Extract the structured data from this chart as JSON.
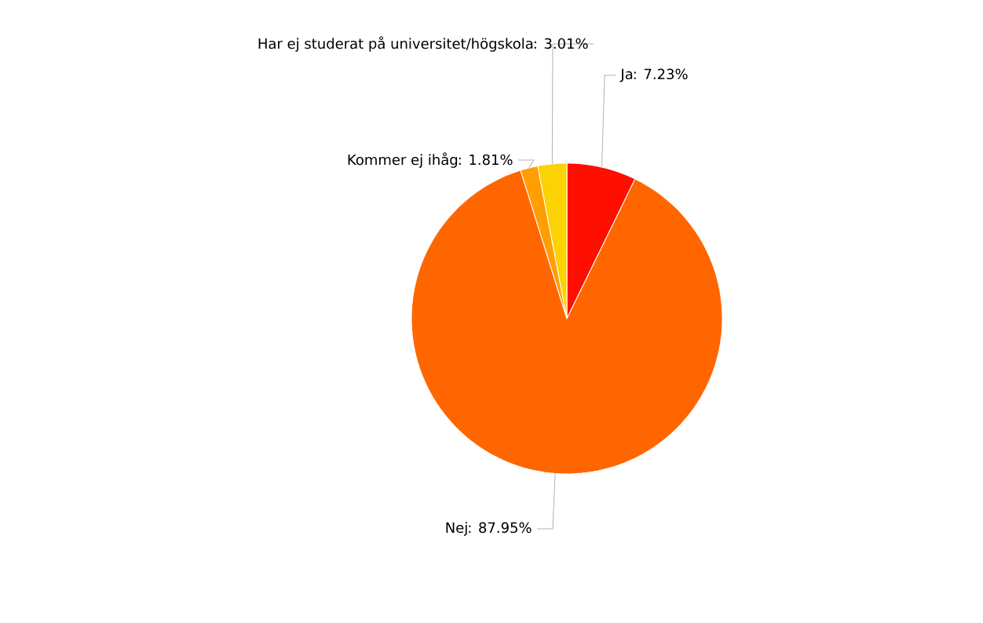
{
  "chart_data": {
    "type": "pie",
    "categories": [
      "Ja",
      "Nej",
      "Kommer ej ihåg",
      "Har ej studerat på universitet/högskola"
    ],
    "values": [
      7.23,
      87.95,
      1.81,
      3.01
    ],
    "colors": [
      "#ff0f00",
      "#ff6600",
      "#ff9e01",
      "#fcd202"
    ],
    "value_labels": [
      ": 7.23%",
      ": 87.95%",
      ": 1.81%",
      ": 3.01%"
    ],
    "legend": false
  }
}
